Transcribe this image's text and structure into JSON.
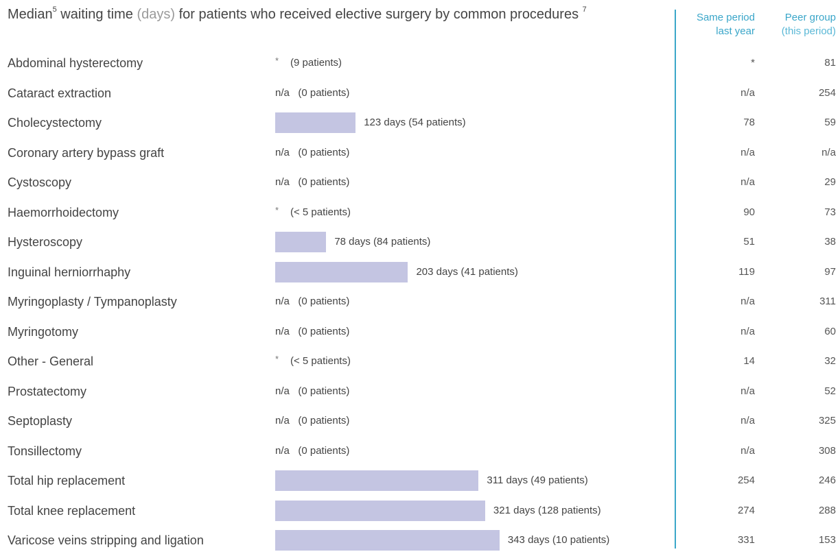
{
  "title": {
    "prefix": "Median",
    "sup1": "5",
    "middle": " waiting time ",
    "unit": "(days)",
    "suffix": " for patients who received elective surgery by common procedures ",
    "sup2": "7"
  },
  "headers": {
    "same_line1": "Same period",
    "same_line2": "last year",
    "peer_line1": "Peer group",
    "peer_line2": "(this period)"
  },
  "colors": {
    "bar": "#c4c5e2",
    "accent": "#3aa6c9",
    "text": "#444444"
  },
  "chart_data": {
    "type": "bar",
    "orientation": "horizontal",
    "title": "Median waiting time (days) for patients who received elective surgery by common procedures",
    "categories": [
      "Abdominal hysterectomy",
      "Cataract extraction",
      "Cholecystectomy",
      "Coronary artery bypass graft",
      "Cystoscopy",
      "Haemorrhoidectomy",
      "Hysteroscopy",
      "Inguinal herniorrhaphy",
      "Myringoplasty / Tympanoplasty",
      "Myringotomy",
      "Other - General",
      "Prostatectomy",
      "Septoplasty",
      "Tonsillectomy",
      "Total hip replacement",
      "Total knee replacement",
      "Varicose veins stripping and ligation"
    ],
    "values": [
      null,
      null,
      123,
      null,
      null,
      null,
      78,
      203,
      null,
      null,
      null,
      null,
      null,
      null,
      311,
      321,
      343
    ],
    "value_labels": [
      "(9 patients)",
      "n/a   (0 patients)",
      "123 days (54 patients)",
      "n/a   (0 patients)",
      "n/a   (0 patients)",
      "(< 5 patients)",
      "78 days (84 patients)",
      "203 days (41 patients)",
      "n/a   (0 patients)",
      "n/a   (0 patients)",
      "(< 5 patients)",
      "n/a   (0 patients)",
      "n/a   (0 patients)",
      "n/a   (0 patients)",
      "311 days (49 patients)",
      "321 days (128 patients)",
      "343 days (10 patients)"
    ],
    "suppressed": [
      true,
      false,
      false,
      false,
      false,
      true,
      false,
      false,
      false,
      false,
      true,
      false,
      false,
      false,
      false,
      false,
      false
    ],
    "suppressed_mark": "*",
    "same_period_last_year": [
      "*",
      "n/a",
      "78",
      "n/a",
      "n/a",
      "90",
      "51",
      "119",
      "n/a",
      "n/a",
      "14",
      "n/a",
      "n/a",
      "n/a",
      "254",
      "274",
      "331"
    ],
    "peer_group_this_period": [
      "81",
      "254",
      "59",
      "n/a",
      "29",
      "73",
      "38",
      "97",
      "311",
      "60",
      "32",
      "52",
      "325",
      "308",
      "246",
      "288",
      "153"
    ],
    "xlim": [
      0,
      343
    ]
  }
}
